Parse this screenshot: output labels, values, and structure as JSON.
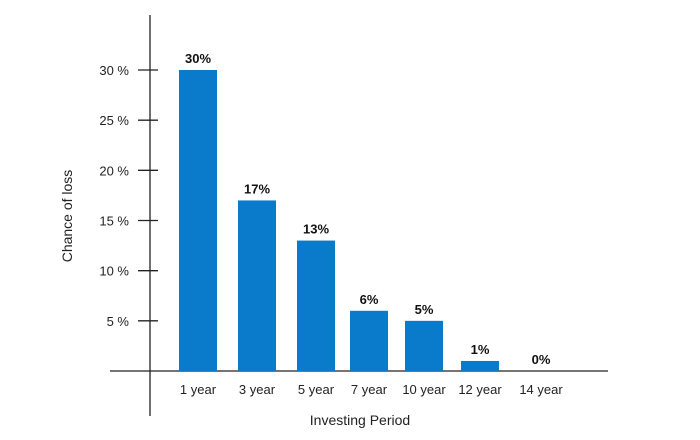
{
  "chart_data": {
    "type": "bar",
    "categories": [
      "1 year",
      "3 year",
      "5 year",
      "7 year",
      "10 year",
      "12 year",
      "14 year"
    ],
    "values": [
      30,
      17,
      13,
      6,
      5,
      1,
      0
    ],
    "data_labels": [
      "30%",
      "17%",
      "13%",
      "6%",
      "5%",
      "1%",
      "0%"
    ],
    "xlabel": "Investing Period",
    "ylabel": "Chance of loss",
    "ylim": [
      0,
      30
    ],
    "yticks": [
      5,
      10,
      15,
      20,
      25,
      30
    ],
    "ytick_labels": [
      "5 %",
      "10 %",
      "15 %",
      "20 %",
      "25 %",
      "30 %"
    ],
    "grid": false,
    "colors": {
      "bar": "#0a7acb",
      "axis": "#222222"
    }
  }
}
